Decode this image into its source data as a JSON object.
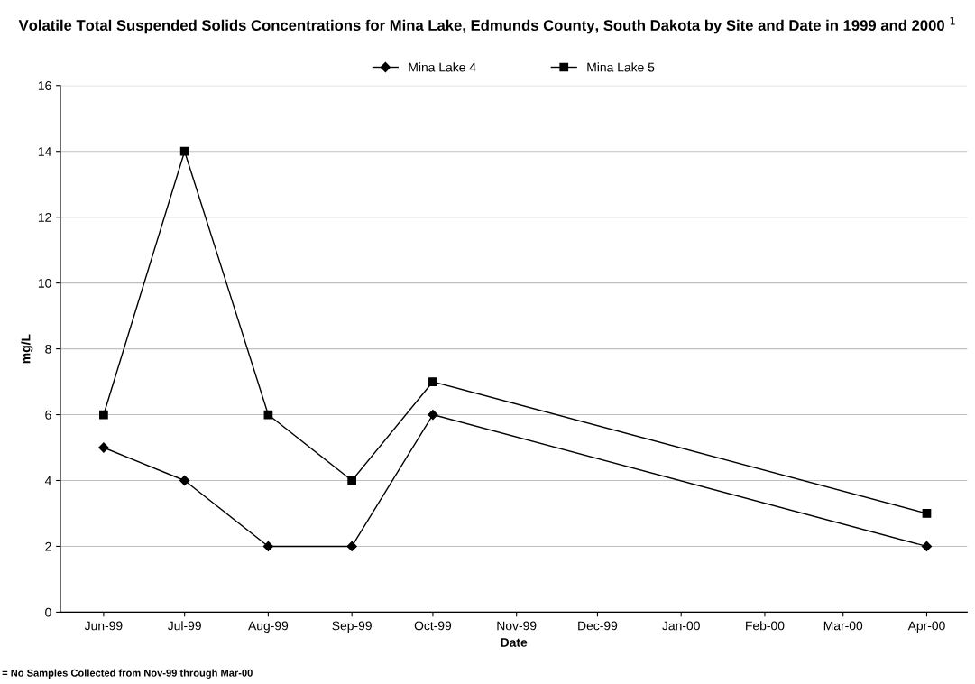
{
  "chart_data": {
    "type": "line",
    "title": "Volatile Total Suspended Solids Concentrations for Mina Lake, Edmunds County, South Dakota by Site and Date in 1999 and 2000 $^{1}$",
    "xlabel": "Date",
    "ylabel": "mg/L",
    "x": [
      "1999-06",
      "1999-07",
      "1999-08",
      "1999-09",
      "1999-10",
      "2000-04"
    ],
    "series": [
      {
        "name": "Mina Lake 4",
        "color": "#000000",
        "marker": "diamond",
        "values": [
          5,
          4,
          2,
          2,
          6,
          2
        ]
      },
      {
        "name": "Mina Lake 5",
        "color": "#000000",
        "marker": "square",
        "values": [
          6,
          14,
          6,
          4,
          7,
          3
        ]
      }
    ],
    "xlim": [
      "1999-05-16",
      "2000-04-16"
    ],
    "xticks": [
      {
        "value": "1999-06",
        "label": "Jun-99"
      },
      {
        "value": "1999-07",
        "label": "Jul-99"
      },
      {
        "value": "1999-08",
        "label": "Aug-99"
      },
      {
        "value": "1999-09",
        "label": "Sep-99"
      },
      {
        "value": "1999-10",
        "label": "Oct-99"
      },
      {
        "value": "1999-11",
        "label": "Nov-99"
      },
      {
        "value": "1999-12",
        "label": "Dec-99"
      },
      {
        "value": "2000-01",
        "label": "Jan-00"
      },
      {
        "value": "2000-02",
        "label": "Feb-00"
      },
      {
        "value": "2000-03",
        "label": "Mar-00"
      },
      {
        "value": "2000-04",
        "label": "Apr-00"
      }
    ],
    "ylim": [
      0,
      16
    ],
    "yticks": [
      0,
      2,
      4,
      6,
      8,
      10,
      12,
      14,
      16
    ],
    "grid": "y",
    "legend": "top",
    "line_style": "solid",
    "annotations": [
      "= No Samples Collected from Nov-99 through Mar-00"
    ]
  }
}
